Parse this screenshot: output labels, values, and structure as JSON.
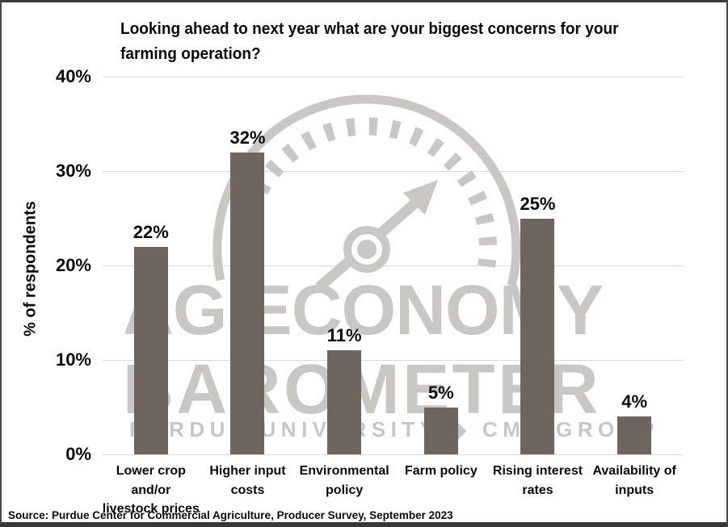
{
  "title": {
    "text": "Looking ahead to next year what are your biggest concerns for your farming operation?"
  },
  "y_axis": {
    "label": "% of respondents",
    "ticks": [
      "40%",
      "30%",
      "20%",
      "10%",
      "0%"
    ]
  },
  "source": "Source: Purdue Center for Commercial Agriculture, Producer Survey, September 2023",
  "watermark": {
    "line1": "AG ECONOMY",
    "line2": "BAROMETER",
    "line3": "PURDUE UNIVERSITY ◆ CME GROUP",
    "gauge_icon": "barometer-gauge-icon"
  },
  "colors": {
    "bar": "#6e655e",
    "grid": "#d9d9d9",
    "watermark": "#c8c7c4",
    "text": "#0a0a0a",
    "border": "#3f3f3f"
  },
  "chart_data": {
    "type": "bar",
    "title": "Looking ahead to next year what are your biggest concerns for your farming operation?",
    "categories": [
      "Lower crop and/or livestock prices",
      "Higher input costs",
      "Environmental policy",
      "Farm policy",
      "Rising interest rates",
      "Availability of inputs"
    ],
    "category_lines": [
      [
        "Lower crop",
        "and/or",
        "livestock prices"
      ],
      [
        "Higher input",
        "costs"
      ],
      [
        "Environmental",
        "policy"
      ],
      [
        "Farm policy"
      ],
      [
        "Rising interest",
        "rates"
      ],
      [
        "Availability of",
        "inputs"
      ]
    ],
    "values": [
      22,
      32,
      11,
      5,
      25,
      4
    ],
    "labels": [
      "22%",
      "32%",
      "11%",
      "5%",
      "25%",
      "4%"
    ],
    "xlabel": "",
    "ylabel": "% of respondents",
    "ylim": [
      0,
      40
    ],
    "grid": true,
    "legend": null
  }
}
